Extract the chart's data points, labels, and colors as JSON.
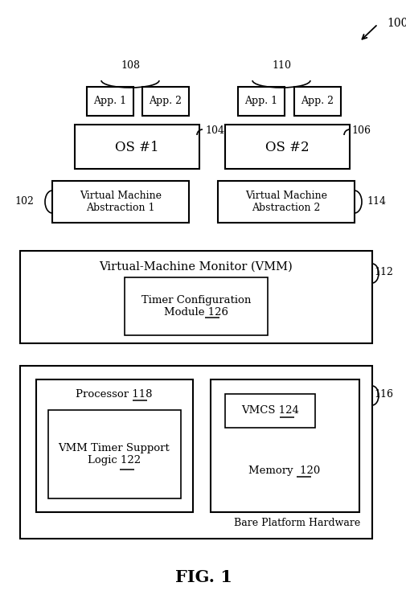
{
  "fig_label": "FIG. 1",
  "ref_100": "100",
  "ref_102": "102",
  "ref_104": "104",
  "ref_106": "106",
  "ref_108": "108",
  "ref_110": "110",
  "ref_112": "112",
  "ref_114": "114",
  "ref_116": "116",
  "ref_118": "118",
  "ref_120": "120",
  "ref_122": "122",
  "ref_124": "124",
  "ref_126": "126",
  "app1_label": "App. 1",
  "app2_label": "App. 2",
  "os1_label": "OS #1",
  "os2_label": "OS #2",
  "vma1_label": "Virtual Machine\nAbstraction 1",
  "vma2_label": "Virtual Machine\nAbstraction 2",
  "vmm_label": "Virtual-Machine Monitor (VMM)",
  "timer_label": "Timer Configuration\nModule 126",
  "proc_label": "Processor 118",
  "vmcs_label": "VMCS 124",
  "vmm_timer_label": "VMM Timer Support\nLogic 122",
  "memory_label": "Memory  120",
  "bare_label": "Bare Platform Hardware",
  "bg_color": "#ffffff",
  "line_color": "#000000",
  "fs_main": 10,
  "fs_small": 9,
  "fs_os": 12,
  "fs_fig": 15
}
